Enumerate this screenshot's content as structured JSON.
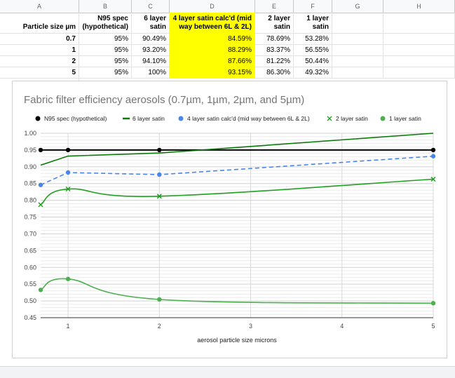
{
  "columns": [
    "A",
    "B",
    "C",
    "D",
    "E",
    "F",
    "G",
    "H"
  ],
  "headers": {
    "a": "Particle size µm",
    "b": "N95 spec (hypothetical)",
    "c": "6 layer satin",
    "d": "4 layer satin calc'd (mid way between 6L & 2L)",
    "e": "2 layer satin",
    "f": "1 layer satin"
  },
  "rows": [
    {
      "size": "0.7",
      "n95": "95%",
      "l6": "90.49%",
      "l4": "84.59%",
      "l2": "78.69%",
      "l1": "53.28%"
    },
    {
      "size": "1",
      "n95": "95%",
      "l6": "93.20%",
      "l4": "88.29%",
      "l2": "83.37%",
      "l1": "56.55%"
    },
    {
      "size": "2",
      "n95": "95%",
      "l6": "94.10%",
      "l4": "87.66%",
      "l2": "81.22%",
      "l1": "50.44%"
    },
    {
      "size": "5",
      "n95": "95%",
      "l6": "100%",
      "l4": "93.15%",
      "l2": "86.30%",
      "l1": "49.32%"
    }
  ],
  "colors": {
    "n95": "#000000",
    "l6": "#0b7a0b",
    "l4": "#4a86e8",
    "l2": "#21a121",
    "l1": "#4caf50",
    "highlight": "#ffff00"
  },
  "chart_data": {
    "type": "line",
    "title": "Fabric filter efficiency aerosols (0.7µm, 1µm, 2µm, and 5µm)",
    "xlabel": "aerosol particle size microns",
    "ylabel": "",
    "x": [
      0.7,
      1,
      2,
      5
    ],
    "xlim": [
      0.7,
      5
    ],
    "ylim": [
      0.45,
      1.0
    ],
    "xticks": [
      "1",
      "2",
      "3",
      "4",
      "5"
    ],
    "xtick_values": [
      1,
      2,
      3,
      4,
      5
    ],
    "yticks": [
      "1.00",
      "0.95",
      "0.90",
      "0.85",
      "0.80",
      "0.75",
      "0.70",
      "0.65",
      "0.60",
      "0.55",
      "0.50",
      "0.45"
    ],
    "ytick_values": [
      1.0,
      0.95,
      0.9,
      0.85,
      0.8,
      0.75,
      0.7,
      0.65,
      0.6,
      0.55,
      0.5,
      0.45
    ],
    "legend_position": "top",
    "grid": true,
    "series": [
      {
        "name": "N95 spec (hypothetical)",
        "key": "n95",
        "values": [
          0.95,
          0.95,
          0.95,
          0.95
        ],
        "marker": "dot",
        "dash": false
      },
      {
        "name": "6 layer satin",
        "key": "l6",
        "values": [
          0.9049,
          0.932,
          0.941,
          1.0
        ],
        "marker": "none",
        "dash": false
      },
      {
        "name": "4 layer satin calc'd (mid way between 6L & 2L)",
        "key": "l4",
        "values": [
          0.8459,
          0.8829,
          0.8766,
          0.9315
        ],
        "marker": "dot",
        "dash": true
      },
      {
        "name": "2 layer satin",
        "key": "l2",
        "values": [
          0.7869,
          0.8337,
          0.8122,
          0.863
        ],
        "marker": "x",
        "dash": false
      },
      {
        "name": "1 layer satin",
        "key": "l1",
        "values": [
          0.5328,
          0.5655,
          0.5044,
          0.4932
        ],
        "marker": "dot",
        "dash": false
      }
    ]
  }
}
